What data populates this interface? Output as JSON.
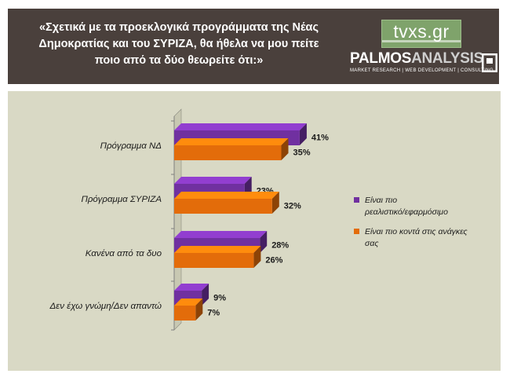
{
  "header": {
    "question_lines": [
      "«Σχετικά με τα προεκλογικά προγράμματα της Νέας",
      "Δημοκρατίας και του ΣΥΡΙΖΑ, θα ήθελα να μου πείτε",
      "ποιο από τα δύο θεωρείτε ότι:»"
    ],
    "logo_tvxs": "tvxs.gr",
    "logo_palmos_1": "PALMOS",
    "logo_palmos_2": "ANALYSIS",
    "logo_palmos_tag": "MARKET RESEARCH | WEB DEVELOPMENT | CONSULTING"
  },
  "colors": {
    "header_bg": "#4a403c",
    "panel_bg": "#d9d9c5",
    "series_1": "#7030a0",
    "series_2": "#e36c0a"
  },
  "chart_data": {
    "type": "bar",
    "orientation": "horizontal",
    "style": "3d",
    "categories": [
      "Πρόγραμμα ΝΔ",
      "Πρόγραμμα ΣΥΡΙΖΑ",
      "Κανένα από τα δυο",
      "Δεν έχω γνώμη/Δεν απαντώ"
    ],
    "series": [
      {
        "name": "Είναι πιο ρεαλιστικό/εφαρμόσιμο",
        "values": [
          41,
          23,
          28,
          9
        ],
        "labels": [
          "41%",
          "23%",
          "28%",
          "9%"
        ],
        "color": "#7030a0"
      },
      {
        "name": "Είναι πιο κοντά στις ανάγκες σας",
        "values": [
          35,
          32,
          26,
          7
        ],
        "labels": [
          "35%",
          "32%",
          "26%",
          "7%"
        ],
        "color": "#e36c0a"
      }
    ],
    "legend_lines": [
      [
        "Είναι πιο",
        "ρεαλιστικό/εφαρμόσιμο"
      ],
      [
        "Είναι πιο κοντά στις ανάγκες",
        "σας"
      ]
    ],
    "value_unit": "%",
    "grid": false,
    "legend_position": "right"
  }
}
